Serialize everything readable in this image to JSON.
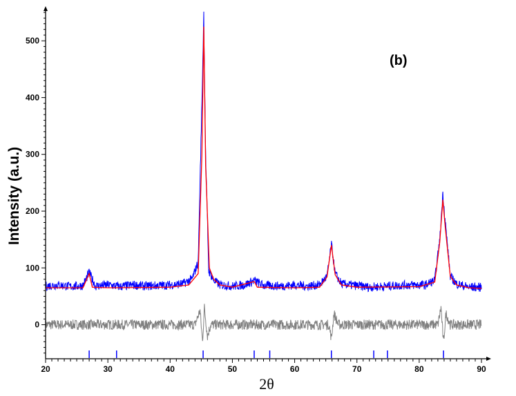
{
  "chart_data": {
    "type": "line",
    "annotation": "(b)",
    "xlabel": "2θ",
    "ylabel": "Intensity (a.u.)",
    "xlim": [
      20,
      90
    ],
    "ylim": [
      -60,
      550
    ],
    "x_ticks": [
      20,
      30,
      40,
      50,
      60,
      70,
      80,
      90
    ],
    "y_ticks": [
      0,
      100,
      200,
      300,
      400,
      500
    ],
    "grid": false,
    "colors": {
      "observed": "#0000ff",
      "calculated": "#ff0000",
      "difference": "#808080",
      "bragg_marks": "#0000ff",
      "axes": "#000000"
    },
    "series": [
      {
        "role": "observed",
        "points": [
          [
            20,
            68
          ],
          [
            22,
            70
          ],
          [
            24,
            67
          ],
          [
            26,
            69
          ],
          [
            27,
            92
          ],
          [
            28,
            68
          ],
          [
            30,
            70
          ],
          [
            32,
            67
          ],
          [
            34,
            70
          ],
          [
            36,
            68
          ],
          [
            38,
            69
          ],
          [
            40,
            70
          ],
          [
            42,
            72
          ],
          [
            43.5,
            80
          ],
          [
            44.5,
            110
          ],
          [
            45.2,
            440
          ],
          [
            45.4,
            548
          ],
          [
            45.7,
            300
          ],
          [
            46.2,
            95
          ],
          [
            47,
            78
          ],
          [
            48,
            70
          ],
          [
            50,
            68
          ],
          [
            52,
            70
          ],
          [
            53.5,
            78
          ],
          [
            55,
            69
          ],
          [
            58,
            68
          ],
          [
            60,
            70
          ],
          [
            62,
            68
          ],
          [
            64,
            70
          ],
          [
            65.2,
            85
          ],
          [
            65.9,
            142
          ],
          [
            66.5,
            90
          ],
          [
            67.5,
            72
          ],
          [
            69,
            70
          ],
          [
            72,
            66
          ],
          [
            75,
            68
          ],
          [
            78,
            70
          ],
          [
            81,
            70
          ],
          [
            82.5,
            78
          ],
          [
            83.3,
            150
          ],
          [
            83.8,
            232
          ],
          [
            84.2,
            180
          ],
          [
            85,
            85
          ],
          [
            86,
            72
          ],
          [
            88,
            66
          ],
          [
            90,
            66
          ]
        ]
      },
      {
        "role": "calculated",
        "points": [
          [
            20,
            65
          ],
          [
            26,
            65
          ],
          [
            27,
            90
          ],
          [
            27.5,
            66
          ],
          [
            30,
            65
          ],
          [
            40,
            66
          ],
          [
            43,
            70
          ],
          [
            44.5,
            90
          ],
          [
            45.1,
            300
          ],
          [
            45.4,
            525
          ],
          [
            45.7,
            280
          ],
          [
            46.3,
            100
          ],
          [
            47,
            80
          ],
          [
            48,
            70
          ],
          [
            50,
            66
          ],
          [
            53.5,
            76
          ],
          [
            54,
            66
          ],
          [
            60,
            65
          ],
          [
            64,
            66
          ],
          [
            65.2,
            84
          ],
          [
            65.9,
            140
          ],
          [
            66.5,
            88
          ],
          [
            67.5,
            70
          ],
          [
            70,
            66
          ],
          [
            80,
            67
          ],
          [
            82.5,
            75
          ],
          [
            83.3,
            145
          ],
          [
            83.8,
            220
          ],
          [
            84.2,
            170
          ],
          [
            85,
            85
          ],
          [
            86,
            70
          ],
          [
            88,
            65
          ],
          [
            90,
            64
          ]
        ]
      },
      {
        "role": "difference",
        "points": [
          [
            20,
            0
          ],
          [
            44,
            0
          ],
          [
            44.8,
            25
          ],
          [
            45.2,
            -30
          ],
          [
            45.5,
            30
          ],
          [
            46,
            -20
          ],
          [
            46.5,
            0
          ],
          [
            65.5,
            0
          ],
          [
            65.9,
            -25
          ],
          [
            66.3,
            20
          ],
          [
            67,
            0
          ],
          [
            83,
            0
          ],
          [
            83.5,
            30
          ],
          [
            83.9,
            -32
          ],
          [
            84.3,
            20
          ],
          [
            85,
            0
          ],
          [
            90,
            0
          ]
        ]
      }
    ],
    "bragg_positions": [
      27.0,
      31.4,
      45.3,
      53.5,
      56.0,
      65.9,
      72.7,
      74.9,
      83.9
    ]
  }
}
